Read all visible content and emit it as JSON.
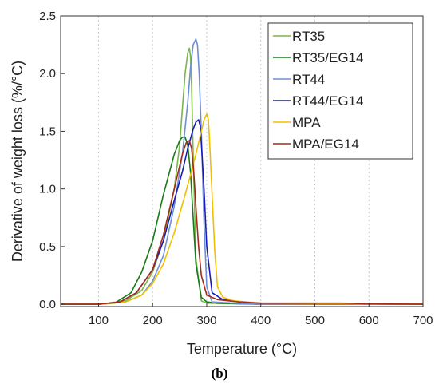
{
  "panel_label": "(b)",
  "chart_data": {
    "type": "line",
    "xlabel": "Temperature (°C)",
    "ylabel": "Derivative of weight loss (%/°C)",
    "xlim": [
      30,
      700
    ],
    "ylim": [
      -0.02,
      2.5
    ],
    "x_ticks": [
      100,
      200,
      300,
      400,
      500,
      600,
      700
    ],
    "y_ticks": [
      0.0,
      0.5,
      1.0,
      1.5,
      2.0,
      2.5
    ],
    "x_tick_labels": [
      "100",
      "200",
      "300",
      "400",
      "500",
      "600",
      "700"
    ],
    "y_tick_labels": [
      "0.0",
      "0.5",
      "1.0",
      "1.5",
      "2.0",
      "2.5"
    ],
    "grid": "vertical-dotted",
    "legend_position": "top-right",
    "series": [
      {
        "name": "RT35",
        "color": "#7ab648",
        "x": [
          30,
          100,
          150,
          180,
          200,
          220,
          240,
          250,
          255,
          260,
          265,
          268,
          270,
          272,
          275,
          280,
          290,
          300,
          350,
          400,
          700
        ],
        "y": [
          0,
          0,
          0.03,
          0.12,
          0.28,
          0.55,
          1.0,
          1.38,
          1.7,
          2.0,
          2.18,
          2.22,
          2.15,
          1.9,
          1.3,
          0.4,
          0.03,
          0.01,
          0.005,
          0,
          0
        ]
      },
      {
        "name": "RT35/EG14",
        "color": "#1a7a1a",
        "x": [
          30,
          100,
          130,
          160,
          180,
          200,
          220,
          240,
          250,
          255,
          260,
          265,
          270,
          275,
          280,
          290,
          300,
          320,
          360,
          400,
          700
        ],
        "y": [
          0,
          0,
          0.01,
          0.1,
          0.28,
          0.55,
          0.95,
          1.3,
          1.42,
          1.45,
          1.45,
          1.38,
          1.15,
          0.75,
          0.35,
          0.06,
          0.02,
          0.01,
          0.005,
          0,
          0
        ]
      },
      {
        "name": "RT44",
        "color": "#6e8fd4",
        "x": [
          30,
          100,
          150,
          180,
          200,
          220,
          240,
          255,
          265,
          270,
          275,
          280,
          283,
          286,
          290,
          295,
          300,
          310,
          350,
          400,
          700
        ],
        "y": [
          0,
          0,
          0.02,
          0.08,
          0.2,
          0.42,
          0.85,
          1.3,
          1.75,
          2.05,
          2.25,
          2.3,
          2.25,
          2.0,
          1.5,
          0.7,
          0.15,
          0.02,
          0.01,
          0,
          0
        ]
      },
      {
        "name": "RT44/EG14",
        "color": "#1a1ab8",
        "x": [
          30,
          100,
          140,
          170,
          200,
          220,
          240,
          255,
          265,
          275,
          280,
          285,
          288,
          290,
          295,
          300,
          310,
          330,
          360,
          400,
          700
        ],
        "y": [
          0,
          0,
          0.02,
          0.1,
          0.3,
          0.55,
          0.9,
          1.15,
          1.35,
          1.52,
          1.58,
          1.6,
          1.55,
          1.4,
          1.0,
          0.5,
          0.1,
          0.04,
          0.02,
          0.01,
          0
        ]
      },
      {
        "name": "MPA",
        "color": "#f0c000",
        "x": [
          30,
          100,
          150,
          180,
          200,
          220,
          240,
          260,
          270,
          280,
          290,
          295,
          300,
          303,
          305,
          310,
          315,
          320,
          330,
          350,
          400,
          700
        ],
        "y": [
          0,
          0,
          0.02,
          0.08,
          0.18,
          0.35,
          0.62,
          0.95,
          1.12,
          1.3,
          1.5,
          1.6,
          1.65,
          1.6,
          1.45,
          0.95,
          0.45,
          0.15,
          0.06,
          0.03,
          0.01,
          0
        ]
      },
      {
        "name": "MPA/EG14",
        "color": "#a52a1a",
        "x": [
          30,
          100,
          140,
          170,
          200,
          220,
          240,
          255,
          262,
          268,
          272,
          276,
          280,
          285,
          290,
          300,
          320,
          360,
          400,
          500,
          550,
          600,
          700
        ],
        "y": [
          0,
          0,
          0.02,
          0.1,
          0.3,
          0.6,
          1.0,
          1.3,
          1.4,
          1.42,
          1.35,
          1.15,
          0.85,
          0.5,
          0.25,
          0.08,
          0.04,
          0.02,
          0.01,
          0.01,
          0.01,
          0.005,
          0
        ]
      }
    ]
  }
}
